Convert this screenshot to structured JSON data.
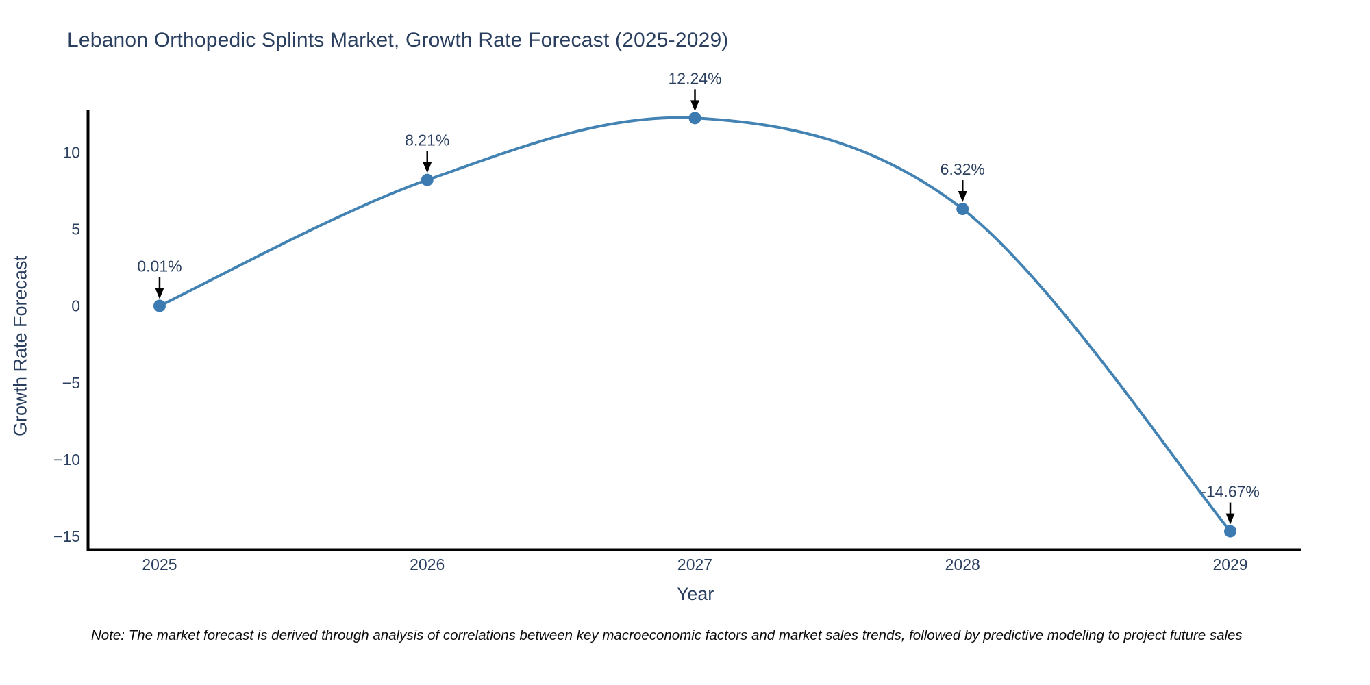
{
  "chart": {
    "title": "Lebanon Orthopedic Splints Market, Growth Rate Forecast (2025-2029)",
    "xlabel": "Year",
    "ylabel": "Growth Rate Forecast"
  },
  "chart_data": {
    "type": "line",
    "title": "Lebanon Orthopedic Splints Market, Growth Rate Forecast (2025-2029)",
    "xlabel": "Year",
    "ylabel": "Growth Rate Forecast",
    "x": [
      2025,
      2026,
      2027,
      2028,
      2029
    ],
    "series": [
      {
        "name": "Growth Rate Forecast",
        "values": [
          0.01,
          8.21,
          12.24,
          6.32,
          -14.67
        ]
      }
    ],
    "point_labels": [
      "0.01%",
      "8.21%",
      "12.24%",
      "6.32%",
      "-14.67%"
    ],
    "x_tick_labels": [
      "2025",
      "2026",
      "2027",
      "2028",
      "2029"
    ],
    "y_tick_values": [
      10,
      5,
      0,
      -5,
      -10,
      -15
    ],
    "y_tick_labels": [
      "10",
      "5",
      "0",
      "−5",
      "−10",
      "−15"
    ],
    "xlim": [
      2024.7365,
      2029.2635
    ],
    "ylim": [
      -15.87,
      12.79
    ],
    "grid": false,
    "legend_position": "none",
    "line_shape": "spline",
    "colors": {
      "line": "#4383b4",
      "marker": "#3c7bb1",
      "spine": "#000000",
      "tick_text": "#2a3f5f",
      "annotation_text": "#2a3f5f",
      "arrow": "#000000",
      "background": "#ffffff"
    }
  },
  "note": {
    "text": "Note: The market forecast is derived through analysis of correlations between key macroeconomic factors and market sales trends, followed by predictive modeling to project future sales"
  }
}
